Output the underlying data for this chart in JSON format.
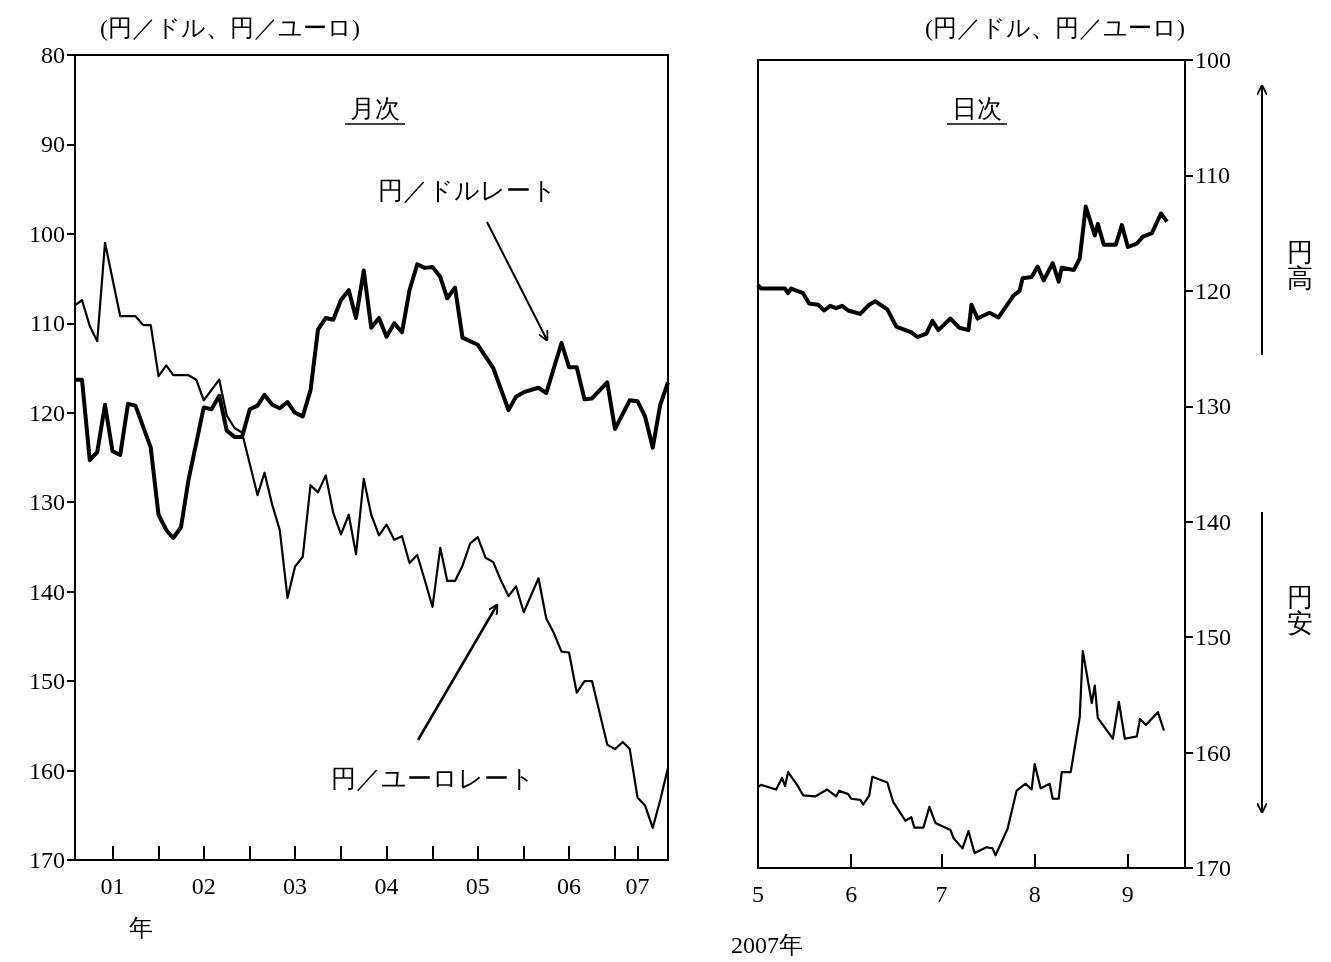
{
  "chart_data": [
    {
      "type": "line",
      "title": "月次",
      "ylabel": "(円／ドル、円／ユーロ)",
      "xlabel": "年",
      "xlim": [
        "2001-02",
        "2007-08"
      ],
      "xticks": [
        {
          "value": "2001-07",
          "label": "01"
        },
        {
          "value": "2002-01",
          "label": null
        },
        {
          "value": "2002-07",
          "label": "02"
        },
        {
          "value": "2003-01",
          "label": null
        },
        {
          "value": "2003-07",
          "label": "03"
        },
        {
          "value": "2004-01",
          "label": null
        },
        {
          "value": "2004-07",
          "label": "04"
        },
        {
          "value": "2005-01",
          "label": null
        },
        {
          "value": "2005-07",
          "label": "05"
        },
        {
          "value": "2006-01",
          "label": null
        },
        {
          "value": "2006-07",
          "label": "06"
        },
        {
          "value": "2007-01",
          "label": null
        },
        {
          "value": "2007-04",
          "label": "07"
        }
      ],
      "ylim": [
        170,
        80
      ],
      "yticks": [
        80,
        90,
        100,
        110,
        120,
        130,
        140,
        150,
        160,
        170
      ],
      "series": [
        {
          "name": "円／ドルレート",
          "color": "#000000",
          "x": [
            "2001-02",
            "2001-03",
            "2001-04",
            "2001-05",
            "2001-06",
            "2001-07",
            "2001-08",
            "2001-09",
            "2001-10",
            "2001-12",
            "2002-01",
            "2002-02",
            "2002-03",
            "2002-04",
            "2002-05",
            "2002-07",
            "2002-08",
            "2002-09",
            "2002-10",
            "2002-11",
            "2002-12",
            "2003-01",
            "2003-02",
            "2003-03",
            "2003-04",
            "2003-05",
            "2003-06",
            "2003-07",
            "2003-08",
            "2003-09",
            "2003-10",
            "2003-11",
            "2003-12",
            "2004-01",
            "2004-02",
            "2004-03",
            "2004-04",
            "2004-05",
            "2004-06",
            "2004-07",
            "2004-08",
            "2004-09",
            "2004-10",
            "2004-11",
            "2004-12",
            "2005-01",
            "2005-02",
            "2005-03",
            "2005-04",
            "2005-05",
            "2005-07",
            "2005-09",
            "2005-11",
            "2005-12",
            "2006-01",
            "2006-03",
            "2006-04",
            "2006-06",
            "2006-07",
            "2006-08",
            "2006-09",
            "2006-10",
            "2006-12",
            "2007-01",
            "2007-03",
            "2007-04",
            "2007-05",
            "2007-06",
            "2007-07",
            "2007-08"
          ],
          "values": [
            116.3,
            116.3,
            125.3,
            124.4,
            119.1,
            124.3,
            124.7,
            119.0,
            119.2,
            123.9,
            131.4,
            133.1,
            134.0,
            132.8,
            127.5,
            119.4,
            119.6,
            118.1,
            122.0,
            122.7,
            122.7,
            119.6,
            119.2,
            118.0,
            119.1,
            119.5,
            118.8,
            120.0,
            120.4,
            117.5,
            110.7,
            109.4,
            109.6,
            107.4,
            106.3,
            109.4,
            104.1,
            110.5,
            109.4,
            111.5,
            110.0,
            111.0,
            106.3,
            103.4,
            103.8,
            103.7,
            104.8,
            107.2,
            106.0,
            111.6,
            112.4,
            115.0,
            119.7,
            118.2,
            117.7,
            117.2,
            117.8,
            112.2,
            114.9,
            114.9,
            118.5,
            118.4,
            116.6,
            121.8,
            118.6,
            118.7,
            120.4,
            123.9,
            119.1,
            116.6
          ]
        },
        {
          "name": "円／ユーロレート",
          "color": "#000000",
          "x": [
            "2001-02",
            "2001-03",
            "2001-04",
            "2001-05",
            "2001-06",
            "2001-08",
            "2001-10",
            "2001-11",
            "2001-12",
            "2002-01",
            "2002-02",
            "2002-03",
            "2002-05",
            "2002-06",
            "2002-07",
            "2002-09",
            "2002-10",
            "2002-11",
            "2002-12",
            "2003-02",
            "2003-03",
            "2003-04",
            "2003-05",
            "2003-06",
            "2003-07",
            "2003-08",
            "2003-09",
            "2003-10",
            "2003-11",
            "2003-12",
            "2004-01",
            "2004-02",
            "2004-03",
            "2004-04",
            "2004-05",
            "2004-06",
            "2004-07",
            "2004-08",
            "2004-09",
            "2004-10",
            "2004-11",
            "2004-12",
            "2005-01",
            "2005-02",
            "2005-03",
            "2005-04",
            "2005-05",
            "2005-06",
            "2005-07",
            "2005-08",
            "2005-09",
            "2005-10",
            "2005-11",
            "2005-12",
            "2006-01",
            "2006-03",
            "2006-04",
            "2006-05",
            "2006-06",
            "2006-07",
            "2006-08",
            "2006-09",
            "2006-10",
            "2006-12",
            "2007-01",
            "2007-02",
            "2007-03",
            "2007-04",
            "2007-05",
            "2007-06",
            "2007-07",
            "2007-08"
          ],
          "values": [
            108.0,
            107.4,
            110.3,
            112.0,
            101.0,
            109.2,
            109.2,
            110.2,
            110.2,
            115.9,
            114.7,
            115.8,
            115.8,
            116.3,
            118.6,
            116.3,
            120.3,
            121.7,
            122.2,
            129.2,
            126.7,
            130.3,
            133.1,
            140.7,
            137.2,
            136.1,
            128.1,
            128.9,
            127.0,
            131.2,
            133.6,
            131.4,
            135.8,
            127.4,
            131.4,
            133.7,
            132.5,
            134.2,
            133.8,
            136.8,
            135.9,
            138.7,
            141.7,
            135.1,
            138.8,
            138.8,
            137.1,
            134.6,
            133.9,
            136.2,
            136.7,
            138.7,
            140.5,
            139.4,
            142.3,
            138.5,
            143.0,
            144.6,
            146.7,
            146.8,
            151.3,
            150.0,
            150.0,
            157.1,
            157.6,
            156.8,
            157.6,
            163.0,
            163.9,
            166.4,
            163.3,
            159.7
          ]
        }
      ]
    },
    {
      "type": "line",
      "title": "日次",
      "ylabel": "(円／ドル、円／ユーロ)",
      "xlabel": "2007年",
      "annotations": [
        "円高",
        "円安"
      ],
      "xlim": [
        "2007-05-01",
        "2007-09-20"
      ],
      "xticks": [
        {
          "value": "2007-05-01",
          "label": "5"
        },
        {
          "value": "2007-06-01",
          "label": "6"
        },
        {
          "value": "2007-07-01",
          "label": "7"
        },
        {
          "value": "2007-08-01",
          "label": "8"
        },
        {
          "value": "2007-09-01",
          "label": "9"
        }
      ],
      "ylim": [
        170,
        100
      ],
      "yticks": [
        100,
        110,
        120,
        130,
        140,
        150,
        160,
        170
      ],
      "series": [
        {
          "color": "#000000",
          "x": [
            "2007-05-01",
            "2007-05-02",
            "2007-05-10",
            "2007-05-11",
            "2007-05-12",
            "2007-05-16",
            "2007-05-18",
            "2007-05-21",
            "2007-05-23",
            "2007-05-25",
            "2007-05-27",
            "2007-05-29",
            "2007-05-31",
            "2007-06-04",
            "2007-06-07",
            "2007-06-09",
            "2007-06-13",
            "2007-06-16",
            "2007-06-21",
            "2007-06-23",
            "2007-06-26",
            "2007-06-28",
            "2007-06-30",
            "2007-07-04",
            "2007-07-07",
            "2007-07-10",
            "2007-07-11",
            "2007-07-13",
            "2007-07-17",
            "2007-07-20",
            "2007-07-25",
            "2007-07-27",
            "2007-07-28",
            "2007-07-31",
            "2007-08-02",
            "2007-08-04",
            "2007-08-07",
            "2007-08-09",
            "2007-08-10",
            "2007-08-14",
            "2007-08-16",
            "2007-08-18",
            "2007-08-21",
            "2007-08-22",
            "2007-08-24",
            "2007-08-28",
            "2007-08-30",
            "2007-09-01",
            "2007-09-04",
            "2007-09-06",
            "2007-09-09",
            "2007-09-12",
            "2007-09-14"
          ],
          "values": [
            119.5,
            119.8,
            119.8,
            120.2,
            119.8,
            120.2,
            121.1,
            121.2,
            121.7,
            121.3,
            121.5,
            121.3,
            121.7,
            122.0,
            121.2,
            120.9,
            121.6,
            123.1,
            123.6,
            124.0,
            123.7,
            122.6,
            123.4,
            122.4,
            123.2,
            123.4,
            121.2,
            122.4,
            121.9,
            122.3,
            120.4,
            120.0,
            118.9,
            118.8,
            117.9,
            119.1,
            117.6,
            119.2,
            118.0,
            118.2,
            117.2,
            112.7,
            115.2,
            114.2,
            116.0,
            116.0,
            114.3,
            116.2,
            115.9,
            115.3,
            115.0,
            113.3,
            114.0
          ]
        },
        {
          "color": "#000000",
          "x": [
            "2007-05-01",
            "2007-05-02",
            "2007-05-07",
            "2007-05-09",
            "2007-05-10",
            "2007-05-11",
            "2007-05-14",
            "2007-05-16",
            "2007-05-20",
            "2007-05-22",
            "2007-05-24",
            "2007-05-27",
            "2007-05-28",
            "2007-05-31",
            "2007-06-01",
            "2007-06-04",
            "2007-06-05",
            "2007-06-07",
            "2007-06-08",
            "2007-06-13",
            "2007-06-15",
            "2007-06-19",
            "2007-06-21",
            "2007-06-22",
            "2007-06-25",
            "2007-06-27",
            "2007-06-29",
            "2007-07-04",
            "2007-07-05",
            "2007-07-08",
            "2007-07-10",
            "2007-07-12",
            "2007-07-16",
            "2007-07-18",
            "2007-07-19",
            "2007-07-23",
            "2007-07-26",
            "2007-07-29",
            "2007-07-31",
            "2007-08-01",
            "2007-08-03",
            "2007-08-06",
            "2007-08-07",
            "2007-08-09",
            "2007-08-10",
            "2007-08-13",
            "2007-08-16",
            "2007-08-17",
            "2007-08-20",
            "2007-08-21",
            "2007-08-22",
            "2007-08-27",
            "2007-08-29",
            "2007-08-31",
            "2007-09-04",
            "2007-09-05",
            "2007-09-07",
            "2007-09-11",
            "2007-09-13"
          ],
          "values": [
            163.0,
            162.8,
            163.2,
            162.2,
            162.9,
            161.7,
            162.8,
            163.7,
            163.8,
            163.5,
            163.2,
            163.8,
            163.3,
            163.6,
            164.0,
            164.1,
            164.5,
            163.7,
            162.1,
            162.6,
            164.3,
            165.9,
            165.6,
            166.5,
            166.5,
            164.7,
            166.1,
            166.7,
            167.4,
            168.3,
            166.8,
            168.7,
            168.2,
            168.3,
            168.9,
            166.6,
            163.3,
            162.7,
            163.2,
            161.0,
            163.1,
            162.7,
            164.0,
            164.0,
            161.7,
            161.7,
            156.9,
            151.2,
            155.7,
            154.2,
            157.0,
            158.8,
            155.6,
            158.8,
            158.6,
            157.1,
            157.6,
            156.5,
            158.1
          ]
        }
      ]
    }
  ]
}
